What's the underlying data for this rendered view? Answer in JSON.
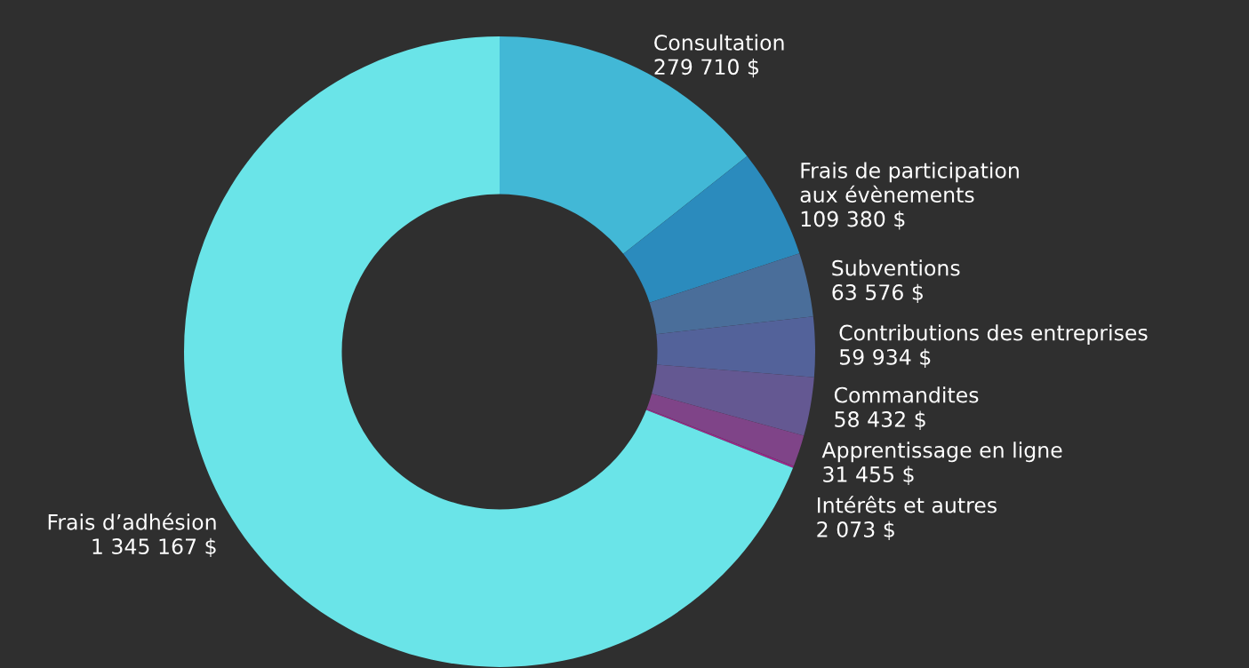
{
  "chart_data": {
    "type": "donut",
    "categories": [
      "Consultation",
      "Frais de participation\naux évènements",
      "Subventions",
      "Contributions des entreprises",
      "Commandites",
      "Apprentissage en ligne",
      "Intérêts et autres",
      "Frais d’adhésion"
    ],
    "values": [
      279710,
      109380,
      63576,
      59934,
      58432,
      31455,
      2073,
      1345167
    ],
    "value_labels": [
      "279 710 $",
      "109 380 $",
      "63 576 $",
      "59 934 $",
      "58 432 $",
      "31 455 $",
      "2 073 $",
      "1 345 167 $"
    ],
    "colors": [
      "#42b8d6",
      "#2b8bbd",
      "#4a6e9a",
      "#53629a",
      "#645892",
      "#7f4488",
      "#9b2a8a",
      "#6ae4e8"
    ]
  }
}
